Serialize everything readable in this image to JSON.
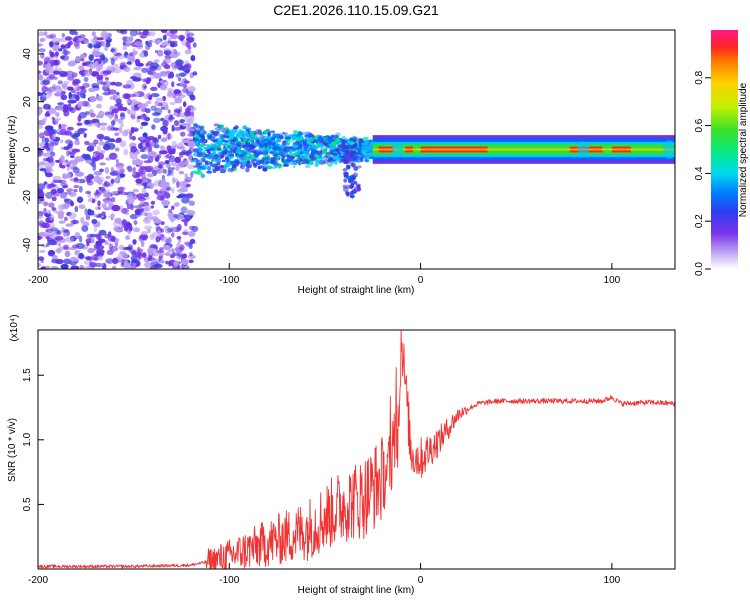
{
  "title": "C2E1.2026.110.15.09.G21",
  "colors": {
    "snr_line": "#f03434",
    "scatter_dot": "#6a20e8",
    "colormap": [
      "#ffffff",
      "#b89cf2",
      "#7030e8",
      "#3a3ae0",
      "#0066ff",
      "#00c8ff",
      "#00e890",
      "#2fe02f",
      "#c8f000",
      "#ffd000",
      "#ff8000",
      "#ff2020",
      "#ff1a8c"
    ]
  },
  "chart_data": [
    {
      "type": "heatmap",
      "xlabel": "Height of straight line (km)",
      "ylabel": "Frequency (Hz)",
      "xlim": [
        -200,
        133
      ],
      "ylim": [
        -50,
        50
      ],
      "xticks": [
        -200,
        -100,
        0,
        100
      ],
      "yticks": [
        -40,
        -20,
        0,
        20,
        40
      ],
      "colorbar": {
        "label": "Normalized spectral amplitude",
        "range": [
          0,
          1
        ],
        "ticks": [
          "0.0",
          "0.2",
          "0.4",
          "0.6",
          "0.8"
        ]
      },
      "regions": [
        {
          "x_range": [
            -200,
            -118
          ],
          "freq_range": [
            -50,
            50
          ],
          "amplitude": [
            0.05,
            0.25
          ]
        },
        {
          "x_range": [
            -118,
            -25
          ],
          "freq_range": [
            -12,
            12
          ],
          "amplitude": [
            0.2,
            0.5
          ]
        },
        {
          "x_range": [
            -40,
            -32
          ],
          "freq_range": [
            -20,
            0
          ],
          "amplitude": [
            0.2,
            0.3
          ]
        },
        {
          "x_range": [
            -25,
            133
          ],
          "freq_range": [
            -3,
            3
          ],
          "amplitude": [
            0.4,
            1.0
          ]
        }
      ]
    },
    {
      "type": "line",
      "xlabel": "Height of straight line (km)",
      "ylabel": "SNR (10 * v/v)",
      "scale_label": "(x10⁴)",
      "xlim": [
        -200,
        133
      ],
      "ylim": [
        0,
        1.85
      ],
      "xticks": [
        -200,
        -100,
        0,
        100
      ],
      "yticks": [
        "0.5",
        "1.0",
        "1.5"
      ],
      "series": [
        {
          "x": [
            -200,
            -150,
            -120,
            -110,
            -100,
            -90,
            -80,
            -70,
            -60,
            -50,
            -40,
            -30,
            -20,
            -15,
            -12,
            -10,
            -5,
            0,
            10,
            20,
            30,
            40,
            60,
            80,
            95,
            100,
            105,
            120,
            133
          ],
          "values": [
            0.02,
            0.02,
            0.03,
            0.06,
            0.1,
            0.15,
            0.2,
            0.25,
            0.3,
            0.4,
            0.5,
            0.55,
            0.7,
            0.85,
            1.0,
            1.8,
            0.9,
            0.85,
            1.0,
            1.2,
            1.28,
            1.3,
            1.3,
            1.3,
            1.3,
            1.33,
            1.28,
            1.29,
            1.28
          ]
        }
      ]
    }
  ]
}
